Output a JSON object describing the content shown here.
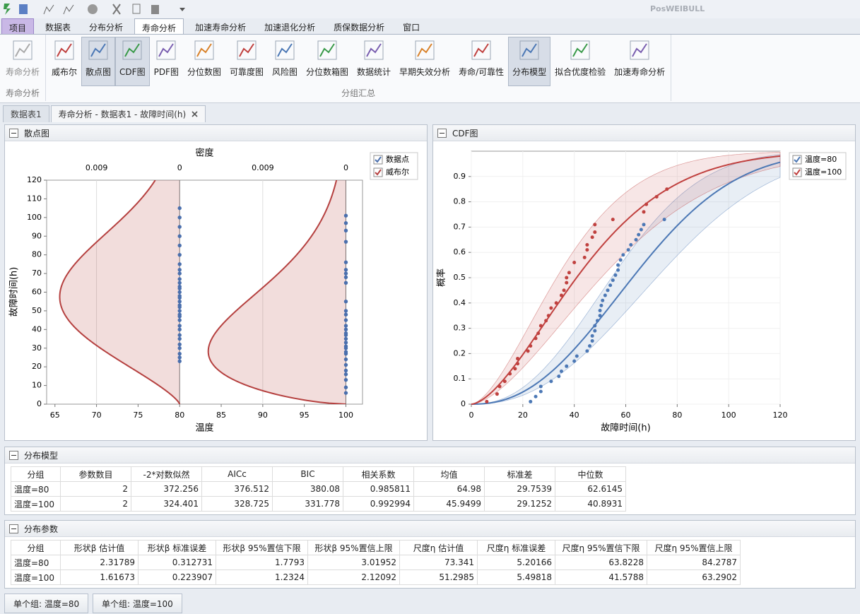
{
  "app": {
    "title": "PosWEIBULL"
  },
  "menu": {
    "tabs": [
      "项目",
      "数据表",
      "分布分析",
      "寿命分析",
      "加速寿命分析",
      "加速退化分析",
      "质保数据分析",
      "窗口"
    ],
    "active": 3,
    "highlight": 0
  },
  "ribbon": {
    "groups": [
      {
        "label": "寿命分析",
        "buttons": [
          "寿命分析"
        ],
        "selected": [],
        "disabled": [
          0
        ]
      },
      {
        "label": "分组汇总",
        "buttons": [
          "威布尔",
          "散点图",
          "CDF图",
          "PDF图",
          "分位数图",
          "可靠度图",
          "风险图",
          "分位数箱图",
          "数据统计",
          "早期失效分析",
          "寿命/可靠性",
          "分布模型",
          "拟合优度检验",
          "加速寿命分析"
        ],
        "selected": [
          1,
          2,
          11
        ],
        "disabled": []
      }
    ]
  },
  "doc_tabs": {
    "tabs": [
      "数据表1",
      "寿命分析 - 数据表1 - 故障时间(h)"
    ],
    "active": 1
  },
  "scatter_chart": {
    "type": "scatter",
    "panel_title": "散点图",
    "top_title": "密度",
    "xlabel": "温度",
    "ylabel": "故障时间(h)",
    "top_xticks": [
      {
        "value": 0.009,
        "x": 70
      },
      {
        "value": 0,
        "x": 80
      },
      {
        "value": 0.009,
        "x": 90
      },
      {
        "value": 0,
        "x": 100
      }
    ],
    "xlim": [
      64,
      102
    ],
    "xticks": [
      65,
      70,
      75,
      80,
      85,
      90,
      95,
      100
    ],
    "ylim": [
      0,
      120
    ],
    "yticks": [
      0,
      10,
      20,
      30,
      40,
      50,
      60,
      70,
      80,
      90,
      100,
      110,
      120
    ],
    "legend": [
      "数据点",
      "威布尔"
    ],
    "point_color": "#4a6fad",
    "curve_color": "#b5403f",
    "groups": [
      {
        "x": 80,
        "values": [
          23,
          25,
          27,
          30,
          32,
          35,
          37,
          40,
          42,
          45,
          47,
          48,
          50,
          52,
          53,
          55,
          57,
          58,
          60,
          62,
          63,
          65,
          67,
          70,
          72,
          75,
          80,
          85,
          90,
          95,
          100,
          105
        ]
      },
      {
        "x": 100,
        "values": [
          6,
          9,
          13,
          16,
          18,
          21,
          24,
          27,
          28,
          30,
          31,
          33,
          35,
          37,
          38,
          40,
          42,
          45,
          48,
          50,
          55,
          65,
          68,
          70,
          72,
          76,
          87,
          93,
          97,
          101
        ]
      }
    ]
  },
  "cdf_chart": {
    "type": "line",
    "panel_title": "CDF图",
    "xlabel": "故障时间(h)",
    "ylabel": "概率",
    "xlim": [
      0,
      120
    ],
    "xticks": [
      0,
      20,
      40,
      60,
      80,
      100,
      120
    ],
    "ylim": [
      0,
      1
    ],
    "yticks": [
      0,
      0.1,
      0.2,
      0.3,
      0.4,
      0.5,
      0.6,
      0.7,
      0.8,
      0.9
    ],
    "grid": true,
    "series": [
      {
        "name": "温度=80",
        "color": "#4c78b5",
        "x": [
          23,
          25,
          27,
          27,
          31,
          34,
          35,
          37,
          40,
          41,
          45,
          46,
          47,
          47,
          48,
          48,
          49,
          50,
          50,
          50.5,
          51,
          52,
          53,
          54,
          55,
          56,
          57,
          57,
          58,
          59,
          61,
          62,
          64,
          65,
          66,
          67,
          75
        ],
        "values": [
          0.01,
          0.03,
          0.05,
          0.07,
          0.09,
          0.11,
          0.13,
          0.15,
          0.17,
          0.19,
          0.21,
          0.23,
          0.25,
          0.27,
          0.29,
          0.31,
          0.33,
          0.35,
          0.37,
          0.39,
          0.41,
          0.43,
          0.45,
          0.47,
          0.49,
          0.51,
          0.53,
          0.55,
          0.57,
          0.59,
          0.61,
          0.63,
          0.65,
          0.67,
          0.69,
          0.71,
          0.73
        ]
      },
      {
        "name": "温度=100",
        "color": "#c0413f",
        "x": [
          6,
          10,
          11,
          13,
          15,
          17,
          18,
          18,
          22,
          23,
          25,
          26,
          27,
          29,
          30,
          31,
          33,
          35,
          36,
          37,
          37,
          38,
          40,
          44,
          45,
          45,
          47,
          48,
          48,
          55,
          67,
          68,
          72,
          76
        ],
        "values": [
          0.01,
          0.04,
          0.07,
          0.09,
          0.12,
          0.14,
          0.16,
          0.18,
          0.21,
          0.23,
          0.26,
          0.28,
          0.31,
          0.33,
          0.35,
          0.38,
          0.4,
          0.43,
          0.45,
          0.48,
          0.5,
          0.52,
          0.56,
          0.58,
          0.61,
          0.63,
          0.66,
          0.68,
          0.71,
          0.73,
          0.76,
          0.79,
          0.82,
          0.85
        ]
      }
    ]
  },
  "model_table": {
    "title": "分布模型",
    "columns": [
      "分组",
      "参数数目",
      "-2*对数似然",
      "AICc",
      "BIC",
      "相关系数",
      "均值",
      "标准差",
      "中位数"
    ],
    "rows": [
      [
        "温度=80",
        2,
        372.256,
        376.512,
        380.08,
        0.985811,
        64.98,
        29.7539,
        62.6145
      ],
      [
        "温度=100",
        2,
        324.401,
        328.725,
        331.778,
        0.992994,
        45.9499,
        29.1252,
        40.8931
      ]
    ]
  },
  "param_table": {
    "title": "分布参数",
    "columns": [
      "分组",
      "形状β 估计值",
      "形状β 标准误差",
      "形状β 95%置信下限",
      "形状β 95%置信上限",
      "尺度η 估计值",
      "尺度η 标准误差",
      "尺度η 95%置信下限",
      "尺度η 95%置信上限"
    ],
    "rows": [
      [
        "温度=80",
        2.31789,
        0.312731,
        1.7793,
        3.01952,
        73.341,
        5.20166,
        63.8228,
        84.2787
      ],
      [
        "温度=100",
        1.61673,
        0.223907,
        1.2324,
        2.12092,
        51.2985,
        5.49818,
        41.5788,
        63.2902
      ]
    ]
  },
  "footer_buttons": [
    "单个组: 温度=80",
    "单个组: 温度=100"
  ]
}
